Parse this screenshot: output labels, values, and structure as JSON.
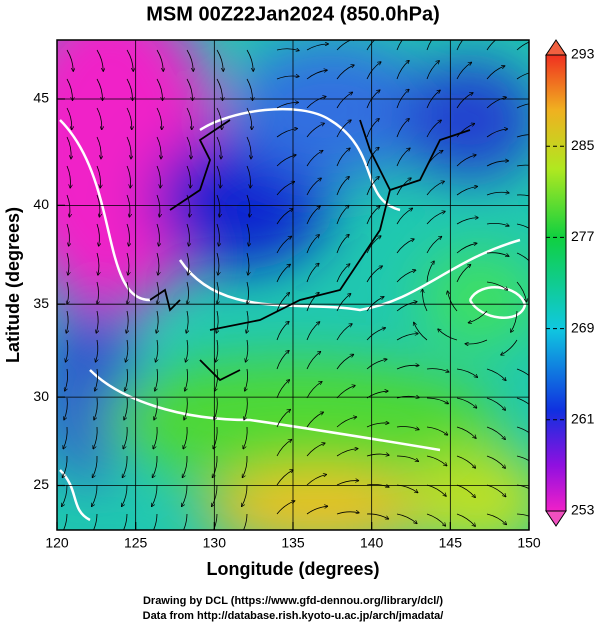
{
  "chart_data": {
    "type": "map",
    "title": "MSM 00Z22Jan2024 (850.0hPa)",
    "x_label": "Longitude (degrees)",
    "y_label": "Latitude  (degrees)",
    "projection": "mercator",
    "xlim": [
      120,
      150
    ],
    "xticks": [
      120,
      125,
      130,
      135,
      140,
      145,
      150
    ],
    "ylim": [
      22.4,
      47.6
    ],
    "yticks": [
      25,
      30,
      35,
      40,
      45
    ],
    "grid": true,
    "colorbar": {
      "lim": [
        253,
        293
      ],
      "ticks": [
        253,
        261,
        269,
        277,
        285,
        293
      ]
    },
    "credits": [
      "Drawing by DCL (https://www.gfd-dennou.org/library/dcl/)",
      "Data from http://database.rish.kyoto-u.ac.jp/arch/jmadata/"
    ]
  }
}
